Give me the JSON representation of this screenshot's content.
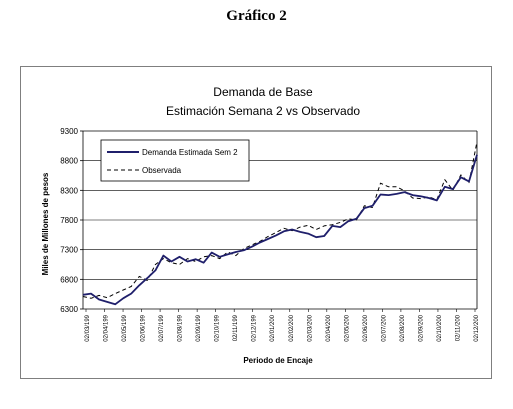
{
  "page": {
    "heading": "Gráfico 2"
  },
  "chart_data": {
    "type": "line",
    "title": "Demanda de Base",
    "subtitle": "Estimación Semana 2 vs  Observado",
    "xlabel": "Periodo de Encaje",
    "ylabel": "Miles de Millones de pesos",
    "ylim": [
      6300,
      9300
    ],
    "yticks": [
      6300,
      6800,
      7300,
      7800,
      8300,
      8800,
      9300
    ],
    "grid": true,
    "legend": "top-left",
    "x_tick_labels": [
      "02/03/199",
      "02/04/199",
      "02/05/199",
      "02/06/199",
      "02/07/199",
      "02/08/199",
      "02/09/199",
      "02/10/199",
      "02/11/199",
      "02/12/199",
      "02/01/200",
      "02/02/200",
      "02/03/200",
      "02/04/200",
      "02/05/200",
      "02/06/200",
      "02/07/200",
      "02/08/200",
      "02/09/200",
      "02/10/200",
      "02/11/200",
      "02/12/200"
    ],
    "series": [
      {
        "name": "Demanda Estimada Sem 2",
        "style": "solid",
        "color": "#1f1f6b",
        "values": [
          6540,
          6560,
          6460,
          6420,
          6380,
          6480,
          6560,
          6700,
          6820,
          6950,
          7200,
          7100,
          7180,
          7100,
          7140,
          7080,
          7250,
          7180,
          7220,
          7260,
          7290,
          7350,
          7420,
          7480,
          7540,
          7610,
          7640,
          7600,
          7570,
          7510,
          7530,
          7700,
          7680,
          7780,
          7820,
          8000,
          8040,
          8230,
          8220,
          8240,
          8270,
          8220,
          8200,
          8170,
          8130,
          8360,
          8320,
          8520,
          8450,
          8900
        ]
      },
      {
        "name": "Observada",
        "style": "dashed",
        "color": "#000000",
        "values": [
          6510,
          6480,
          6530,
          6490,
          6560,
          6620,
          6680,
          6850,
          6780,
          7050,
          7150,
          7080,
          7050,
          7150,
          7100,
          7180,
          7200,
          7150,
          7260,
          7200,
          7320,
          7380,
          7440,
          7520,
          7590,
          7660,
          7620,
          7680,
          7710,
          7640,
          7700,
          7720,
          7760,
          7820,
          7800,
          8040,
          8010,
          8420,
          8360,
          8360,
          8290,
          8170,
          8160,
          8190,
          8140,
          8480,
          8300,
          8560,
          8430,
          9120
        ]
      }
    ]
  }
}
